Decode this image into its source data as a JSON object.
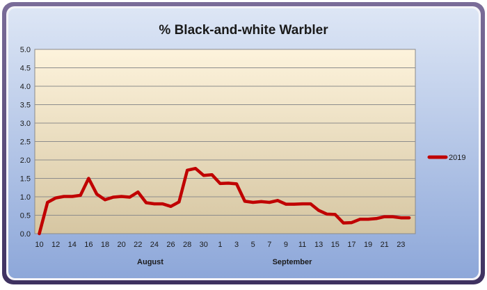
{
  "chart_data": {
    "type": "line",
    "title": "% Black-and-white Warbler",
    "xlabel": "",
    "ylabel": "",
    "ylim": [
      0,
      5
    ],
    "yticks": [
      "0.0",
      "0.5",
      "1.0",
      "1.5",
      "2.0",
      "2.5",
      "3.0",
      "3.5",
      "4.0",
      "4.5",
      "5.0"
    ],
    "x_tick_labels": [
      "10",
      "12",
      "14",
      "16",
      "18",
      "20",
      "22",
      "24",
      "26",
      "28",
      "30",
      "1",
      "3",
      "5",
      "7",
      "9",
      "11",
      "13",
      "15",
      "17",
      "19",
      "21",
      "23"
    ],
    "month_labels": [
      "August",
      "September"
    ],
    "x": [
      "Aug 10",
      "Aug 11",
      "Aug 12",
      "Aug 13",
      "Aug 14",
      "Aug 15",
      "Aug 16",
      "Aug 17",
      "Aug 18",
      "Aug 19",
      "Aug 20",
      "Aug 21",
      "Aug 22",
      "Aug 23",
      "Aug 24",
      "Aug 25",
      "Aug 26",
      "Aug 27",
      "Aug 28",
      "Aug 29",
      "Aug 30",
      "Aug 31",
      "Sep 1",
      "Sep 2",
      "Sep 3",
      "Sep 4",
      "Sep 5",
      "Sep 6",
      "Sep 7",
      "Sep 8",
      "Sep 9",
      "Sep 10",
      "Sep 11",
      "Sep 12",
      "Sep 13",
      "Sep 14",
      "Sep 15",
      "Sep 16",
      "Sep 17",
      "Sep 18",
      "Sep 19",
      "Sep 20",
      "Sep 21",
      "Sep 22",
      "Sep 23",
      "Sep 24"
    ],
    "series": [
      {
        "name": "2019",
        "color": "#c00000",
        "values": [
          0.0,
          0.85,
          0.97,
          1.01,
          1.01,
          1.04,
          1.5,
          1.07,
          0.92,
          0.99,
          1.01,
          0.99,
          1.13,
          0.84,
          0.81,
          0.81,
          0.74,
          0.86,
          1.72,
          1.77,
          1.58,
          1.6,
          1.36,
          1.37,
          1.35,
          0.88,
          0.85,
          0.87,
          0.85,
          0.9,
          0.8,
          0.8,
          0.81,
          0.81,
          0.63,
          0.53,
          0.52,
          0.29,
          0.3,
          0.39,
          0.39,
          0.41,
          0.46,
          0.46,
          0.43,
          0.43
        ]
      }
    ],
    "grid": true,
    "legend": "right",
    "colors": {
      "plot_top": "#fdf3dc",
      "plot_bottom": "#d6c6a2",
      "outer_top": "#dde6f5",
      "outer_bottom": "#8da7d9",
      "frame": "#4a3c6b"
    }
  }
}
